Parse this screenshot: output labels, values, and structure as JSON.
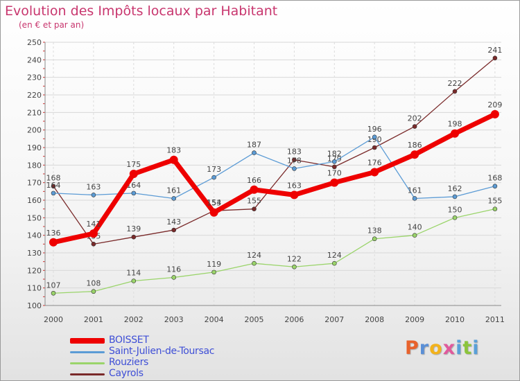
{
  "header": {
    "title": "Evolution des Impôts locaux par Habitant",
    "subtitle": "(en € et par an)"
  },
  "logo": {
    "letters": [
      "P",
      "r",
      "o",
      "x",
      "i",
      "t",
      "i"
    ],
    "colors": [
      "#e8622c",
      "#5a8fd6",
      "#f2b21c",
      "#e05a9c",
      "#5aa0d8",
      "#8cc43c",
      "#5aa0d8"
    ]
  },
  "chart_data": {
    "type": "line",
    "title": "Evolution des Impôts locaux par Habitant",
    "subtitle": "(en € et par an)",
    "xlabel": "",
    "ylabel": "",
    "ylim": [
      100,
      250
    ],
    "yticks": [
      "100",
      "110",
      "120",
      "130",
      "140",
      "150",
      "160",
      "170",
      "180",
      "190",
      "200",
      "210",
      "220",
      "230",
      "240",
      "250"
    ],
    "categories": [
      "2000",
      "2001",
      "2002",
      "2003",
      "2004",
      "2005",
      "2006",
      "2007",
      "2008",
      "2009",
      "2010",
      "2011"
    ],
    "grid": true,
    "legend": "bottom-left",
    "series": [
      {
        "name": "Cayrols",
        "color": "#7a2a2a",
        "values": [
          168,
          135,
          139,
          143,
          154,
          155,
          183,
          179,
          190,
          202,
          222,
          241
        ],
        "labels": [
          "168",
          "135",
          "139",
          "143",
          "154",
          "155",
          "183",
          "179",
          "190",
          "202",
          "222",
          "241"
        ]
      },
      {
        "name": "Rouziers",
        "color": "#9ad46a",
        "values": [
          107,
          108,
          114,
          116,
          119,
          124,
          122,
          124,
          138,
          140,
          150,
          155
        ],
        "labels": [
          "107",
          "108",
          "114",
          "116",
          "119",
          "124",
          "122",
          "124",
          "138",
          "140",
          "150",
          "155"
        ]
      },
      {
        "name": "Saint-Julien-de-Toursac",
        "color": "#5b9bd5",
        "values": [
          164,
          163,
          164,
          161,
          173,
          187,
          178,
          182,
          196,
          161,
          162,
          168
        ],
        "labels": [
          "164",
          "163",
          "164",
          "161",
          "173",
          "187",
          "178",
          "182",
          "196",
          "161",
          "162",
          "168"
        ]
      },
      {
        "name": "BOISSET",
        "color": "#ee0000",
        "values": [
          136,
          141,
          175,
          183,
          153,
          166,
          163,
          170,
          176,
          186,
          198,
          209
        ],
        "labels": [
          "136",
          "141",
          "175",
          "183",
          "153",
          "166",
          "163",
          "170",
          "176",
          "186",
          "198",
          "209"
        ]
      }
    ],
    "legend_order": [
      "BOISSET",
      "Saint-Julien-de-Toursac",
      "Rouziers",
      "Cayrols"
    ]
  }
}
